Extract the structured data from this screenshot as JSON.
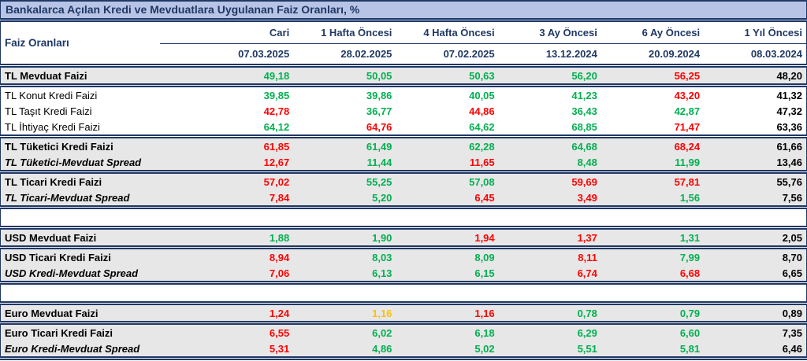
{
  "title": "Bankalarca Açılan Kredi ve Mevduatlara Uygulanan Faiz Oranları, %",
  "header": {
    "label": "Faiz Oranları",
    "periods": [
      "Cari",
      "1 Hafta Öncesi",
      "4 Hafta Öncesi",
      "3 Ay Öncesi",
      "6 Ay Öncesi",
      "1 Yıl Öncesi"
    ],
    "dates": [
      "07.03.2025",
      "28.02.2025",
      "07.02.2025",
      "13.12.2024",
      "20.09.2024",
      "08.03.2024"
    ]
  },
  "colors": {
    "green": "#00b050",
    "red": "#ff0000",
    "yellow": "#ffc000",
    "black": "#000000",
    "navy": "#1f3864",
    "title_bg": "#b8c4e6",
    "row_gray": "#e7e7e7"
  },
  "rows": [
    {
      "label": "TL Mevduat Faizi",
      "bg": "gray",
      "style": "bold",
      "border_bottom": true,
      "values": [
        "49,18",
        "50,05",
        "50,63",
        "56,20",
        "56,25",
        "48,20"
      ],
      "value_colors": [
        "green",
        "green",
        "green",
        "green",
        "red",
        "black"
      ]
    },
    {
      "label": "TL Konut Kredi Faizi",
      "bg": "white",
      "style": "regular",
      "values": [
        "39,85",
        "39,86",
        "40,05",
        "41,23",
        "43,20",
        "41,32"
      ],
      "value_colors": [
        "green",
        "green",
        "green",
        "green",
        "red",
        "black"
      ]
    },
    {
      "label": "TL Taşıt Kredi Faizi",
      "bg": "white",
      "style": "regular",
      "values": [
        "42,78",
        "36,77",
        "44,86",
        "36,43",
        "42,87",
        "47,32"
      ],
      "value_colors": [
        "red",
        "green",
        "red",
        "green",
        "green",
        "black"
      ]
    },
    {
      "label": "TL İhtiyaç Kredi Faizi",
      "bg": "white",
      "style": "regular",
      "border_bottom": true,
      "values": [
        "64,12",
        "64,76",
        "64,62",
        "68,85",
        "71,47",
        "63,36"
      ],
      "value_colors": [
        "green",
        "red",
        "green",
        "green",
        "red",
        "black"
      ]
    },
    {
      "label": "TL Tüketici Kredi Faizi",
      "bg": "gray",
      "style": "bold",
      "values": [
        "61,85",
        "61,49",
        "62,28",
        "64,68",
        "68,24",
        "61,66"
      ],
      "value_colors": [
        "red",
        "green",
        "green",
        "green",
        "red",
        "black"
      ]
    },
    {
      "label": "TL Tüketici-Mevduat Spread",
      "bg": "gray",
      "style": "bold-italic",
      "border_bottom": true,
      "values": [
        "12,67",
        "11,44",
        "11,65",
        "8,48",
        "11,99",
        "13,46"
      ],
      "value_colors": [
        "red",
        "green",
        "red",
        "green",
        "green",
        "black"
      ]
    },
    {
      "label": "TL Ticari Kredi Faizi",
      "bg": "gray",
      "style": "bold",
      "values": [
        "57,02",
        "55,25",
        "57,08",
        "59,69",
        "57,81",
        "55,76"
      ],
      "value_colors": [
        "red",
        "green",
        "green",
        "red",
        "red",
        "black"
      ]
    },
    {
      "label": "TL Ticari-Mevduat Spread",
      "bg": "gray",
      "style": "bold-italic",
      "border_bottom": true,
      "values": [
        "7,84",
        "5,20",
        "6,45",
        "3,49",
        "1,56",
        "7,56"
      ],
      "value_colors": [
        "red",
        "green",
        "red",
        "red",
        "green",
        "black"
      ]
    },
    {
      "spacer": true
    },
    {
      "label": "USD Mevduat Faizi",
      "bg": "gray",
      "style": "bold",
      "border_top": true,
      "border_bottom": true,
      "values": [
        "1,88",
        "1,90",
        "1,94",
        "1,37",
        "1,31",
        "2,05"
      ],
      "value_colors": [
        "green",
        "green",
        "red",
        "red",
        "green",
        "black"
      ]
    },
    {
      "label": "USD Ticari Kredi Faizi",
      "bg": "gray",
      "style": "bold",
      "values": [
        "8,94",
        "8,03",
        "8,09",
        "8,11",
        "7,99",
        "8,70"
      ],
      "value_colors": [
        "red",
        "green",
        "green",
        "red",
        "green",
        "black"
      ]
    },
    {
      "label": "USD Kredi-Mevduat Spread",
      "bg": "gray",
      "style": "bold-italic",
      "border_bottom": true,
      "values": [
        "7,06",
        "6,13",
        "6,15",
        "6,74",
        "6,68",
        "6,65"
      ],
      "value_colors": [
        "red",
        "green",
        "green",
        "red",
        "red",
        "black"
      ]
    },
    {
      "spacer": true
    },
    {
      "label": "Euro Mevduat Faizi",
      "bg": "gray",
      "style": "bold",
      "border_top": true,
      "border_bottom": true,
      "values": [
        "1,24",
        "1,16",
        "1,16",
        "0,78",
        "0,79",
        "0,89"
      ],
      "value_colors": [
        "red",
        "yellow",
        "red",
        "green",
        "green",
        "black"
      ]
    },
    {
      "label": "Euro Ticari Kredi Faizi",
      "bg": "gray",
      "style": "bold",
      "values": [
        "6,55",
        "6,02",
        "6,18",
        "6,29",
        "6,60",
        "7,35"
      ],
      "value_colors": [
        "red",
        "green",
        "green",
        "green",
        "green",
        "black"
      ]
    },
    {
      "label": "Euro Kredi-Mevduat Spread",
      "bg": "gray",
      "style": "bold-italic",
      "border_bottom": true,
      "values": [
        "5,31",
        "4,86",
        "5,02",
        "5,51",
        "5,81",
        "6,46"
      ],
      "value_colors": [
        "red",
        "green",
        "green",
        "green",
        "green",
        "black"
      ]
    }
  ]
}
